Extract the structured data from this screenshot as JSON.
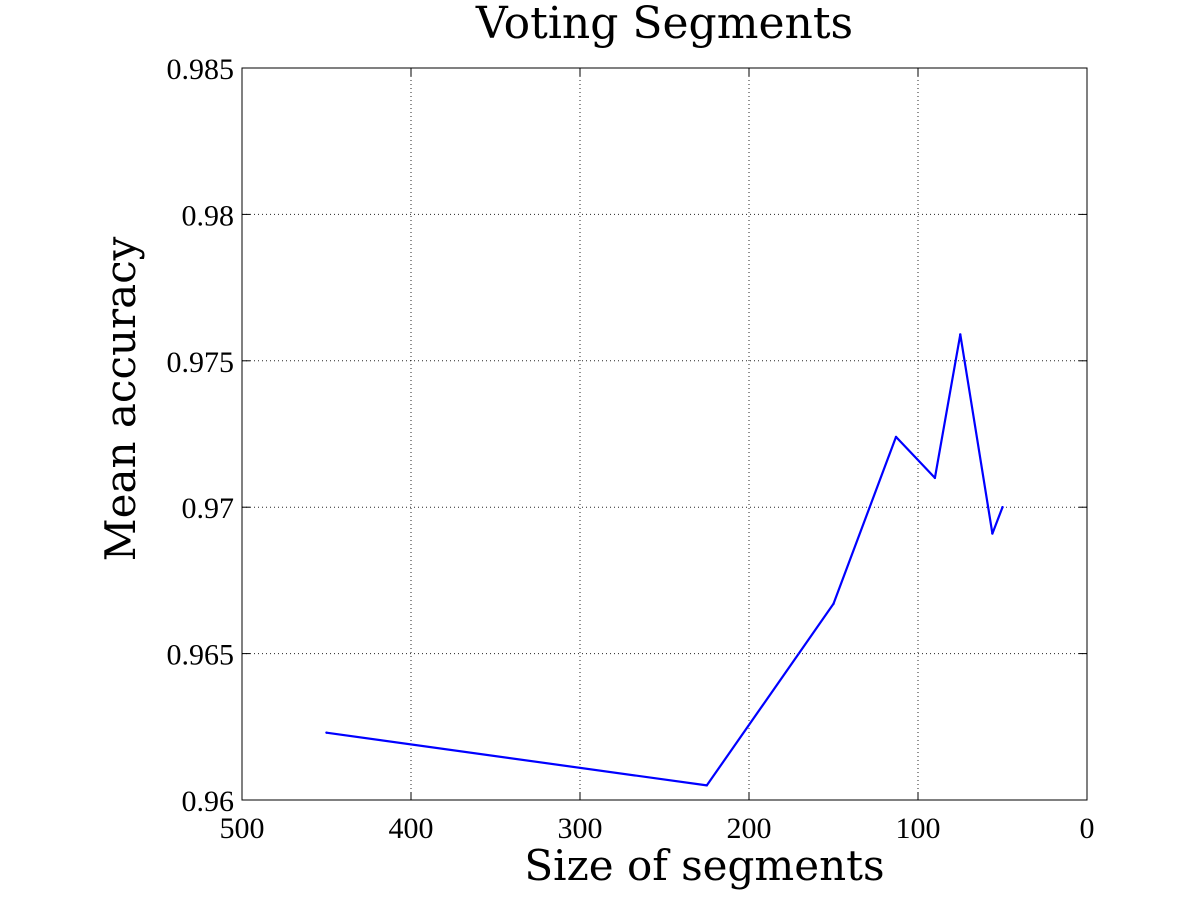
{
  "chart_data": {
    "type": "line",
    "title": "Voting Segments",
    "xlabel": "Size of segments",
    "ylabel": "Mean accuracy",
    "xlim": [
      500,
      0
    ],
    "x_reversed": true,
    "ylim": [
      0.96,
      0.985
    ],
    "xticks": [
      "500",
      "400",
      "300",
      "200",
      "100",
      "0"
    ],
    "yticks": [
      "0.96",
      "0.965",
      "0.97",
      "0.975",
      "0.98",
      "0.985"
    ],
    "grid": true,
    "series": [
      {
        "color": "#0000ff",
        "x": [
          450,
          225,
          150,
          113,
          90,
          75,
          56,
          50
        ],
        "y": [
          0.9623,
          0.9605,
          0.9667,
          0.9724,
          0.971,
          0.9759,
          0.9691,
          0.97
        ]
      }
    ]
  }
}
